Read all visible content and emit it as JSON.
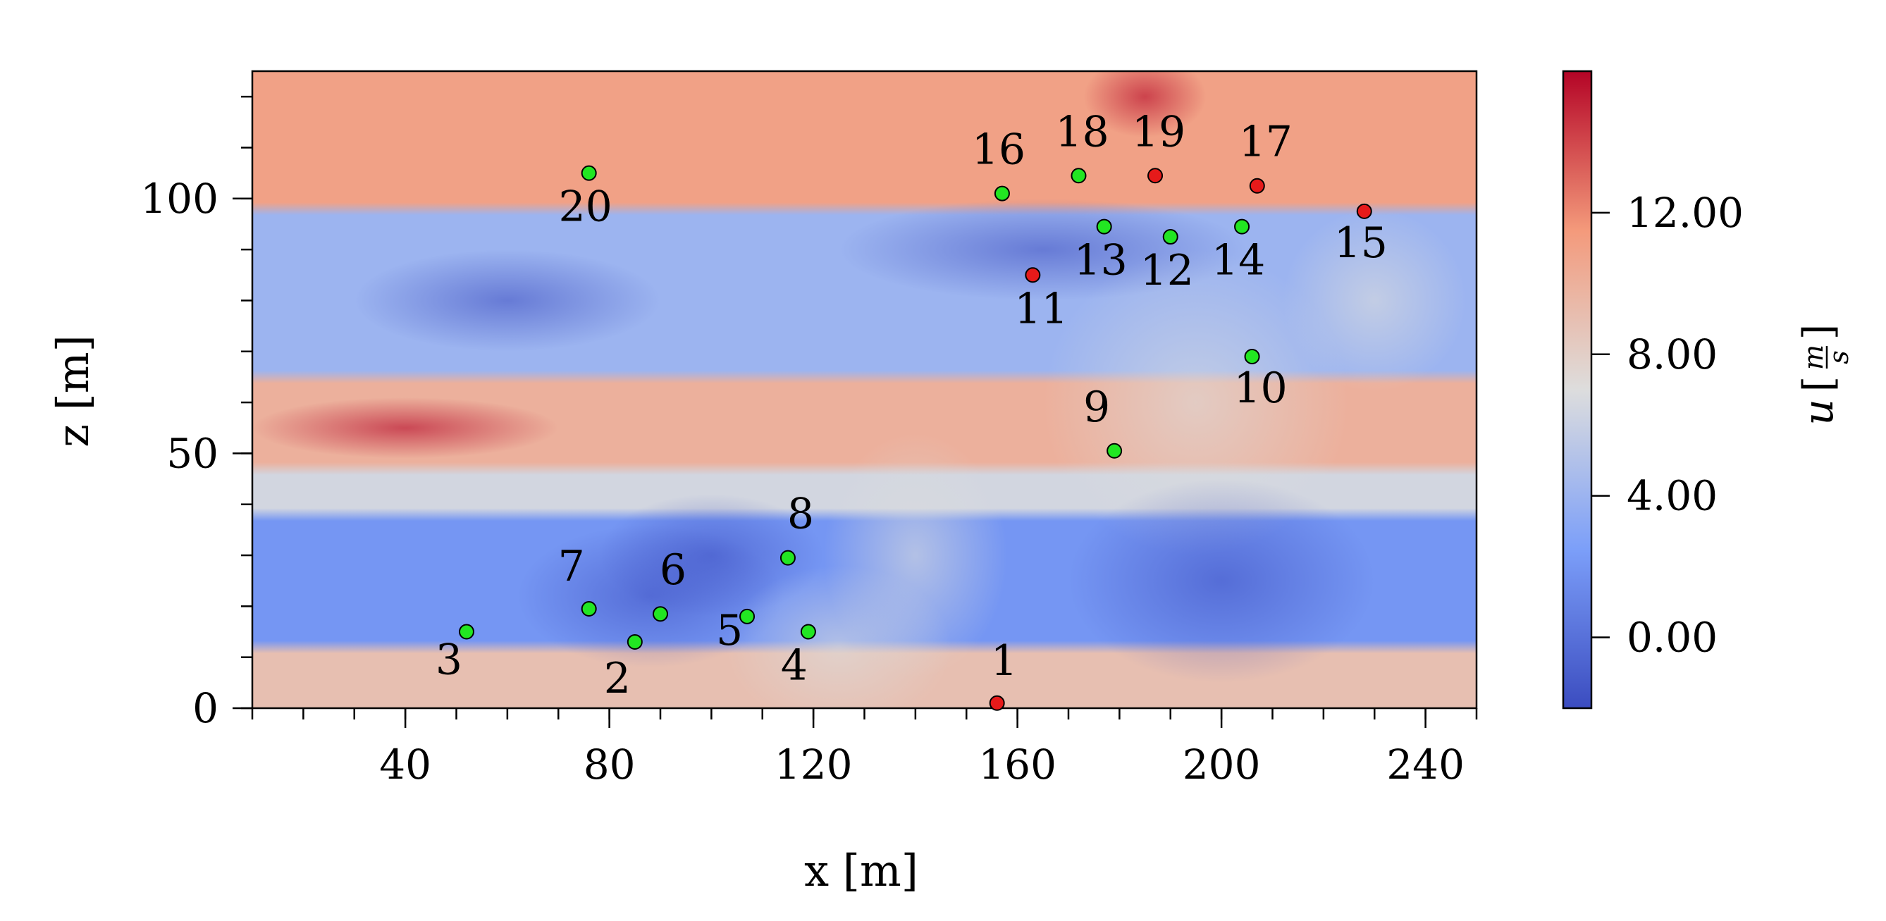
{
  "chart_data": {
    "type": "heatmap",
    "title": "",
    "xlabel": "x [m]",
    "ylabel": "z [m]",
    "xlim": [
      10,
      250
    ],
    "ylim": [
      0,
      125
    ],
    "x_ticks": [
      {
        "value": 40,
        "label": "40"
      },
      {
        "value": 80,
        "label": "80"
      },
      {
        "value": 120,
        "label": "120"
      },
      {
        "value": 160,
        "label": "160"
      },
      {
        "value": 200,
        "label": "200"
      },
      {
        "value": 240,
        "label": "240"
      }
    ],
    "y_ticks": [
      {
        "value": 0,
        "label": "0"
      },
      {
        "value": 50,
        "label": "50"
      },
      {
        "value": 100,
        "label": "100"
      }
    ],
    "x_minor_step": 10,
    "y_minor_step": 10,
    "colorbar": {
      "label_symbol": "u",
      "label_unit_num": "m",
      "label_unit_den": "s",
      "range": [
        -2,
        16
      ],
      "ticks": [
        {
          "value": 0,
          "label": "0.00"
        },
        {
          "value": 4,
          "label": "4.00"
        },
        {
          "value": 8,
          "label": "8.00"
        },
        {
          "value": 12,
          "label": "12.00"
        }
      ],
      "colormap": "coolwarm"
    },
    "field_bands": [
      {
        "z_from": 98,
        "z_to": 125,
        "u": 11.0
      },
      {
        "z_from": 65,
        "z_to": 98,
        "u": 4.0
      },
      {
        "z_from": 47,
        "z_to": 65,
        "u": 10.0
      },
      {
        "z_from": 38,
        "z_to": 47,
        "u": 6.5
      },
      {
        "z_from": 12,
        "z_to": 38,
        "u": 2.0
      },
      {
        "z_from": 0,
        "z_to": 12,
        "u": 9.0
      }
    ],
    "probes": [
      {
        "id": "1",
        "x": 156,
        "z": 1,
        "status": "red"
      },
      {
        "id": "2",
        "x": 85,
        "z": 13,
        "status": "green"
      },
      {
        "id": "3",
        "x": 52,
        "z": 15,
        "status": "green"
      },
      {
        "id": "4",
        "x": 119,
        "z": 15,
        "status": "green"
      },
      {
        "id": "5",
        "x": 107,
        "z": 18,
        "status": "green"
      },
      {
        "id": "6",
        "x": 90,
        "z": 18.5,
        "status": "green"
      },
      {
        "id": "7",
        "x": 76,
        "z": 19.5,
        "status": "green"
      },
      {
        "id": "8",
        "x": 115,
        "z": 29.5,
        "status": "green"
      },
      {
        "id": "9",
        "x": 179,
        "z": 50.5,
        "status": "green"
      },
      {
        "id": "10",
        "x": 206,
        "z": 69,
        "status": "green"
      },
      {
        "id": "11",
        "x": 163,
        "z": 85,
        "status": "red"
      },
      {
        "id": "12",
        "x": 190,
        "z": 92.5,
        "status": "green"
      },
      {
        "id": "13",
        "x": 177,
        "z": 94.5,
        "status": "green"
      },
      {
        "id": "14",
        "x": 204,
        "z": 94.5,
        "status": "green"
      },
      {
        "id": "15",
        "x": 228,
        "z": 97.5,
        "status": "red"
      },
      {
        "id": "16",
        "x": 157,
        "z": 101,
        "status": "green"
      },
      {
        "id": "17",
        "x": 207,
        "z": 102.5,
        "status": "red"
      },
      {
        "id": "18",
        "x": 172,
        "z": 104.5,
        "status": "green"
      },
      {
        "id": "19",
        "x": 187,
        "z": 104.5,
        "status": "red"
      },
      {
        "id": "20",
        "x": 76,
        "z": 105,
        "status": "green"
      }
    ],
    "colors": {
      "green": "#22e622",
      "red": "#e61a1a",
      "marker_edge": "#000000"
    }
  }
}
